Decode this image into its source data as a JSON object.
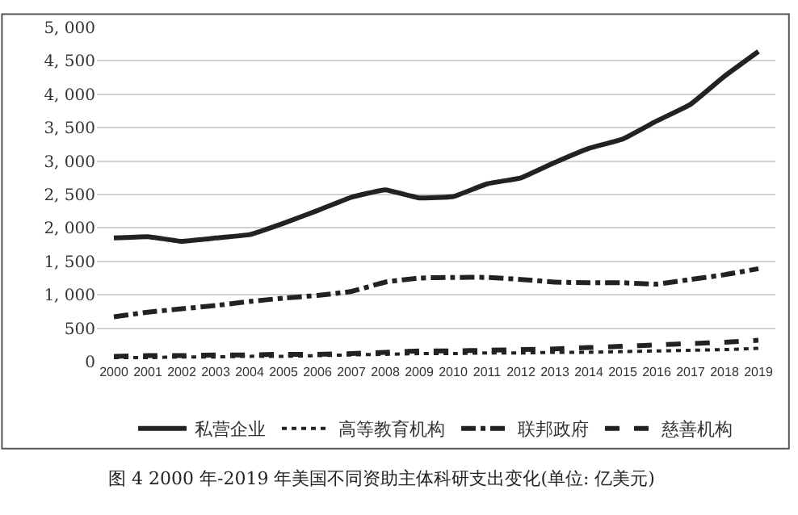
{
  "chart_data": {
    "type": "line",
    "categories": [
      "2000",
      "2001",
      "2002",
      "2003",
      "2004",
      "2005",
      "2006",
      "2007",
      "2008",
      "2009",
      "2010",
      "2011",
      "2012",
      "2013",
      "2014",
      "2015",
      "2016",
      "2017",
      "2018",
      "2019"
    ],
    "series": [
      {
        "name": "私营企业",
        "color": "#222222",
        "line_style": "solid",
        "values": [
          1850,
          1870,
          1800,
          1850,
          1900,
          2070,
          2260,
          2460,
          2570,
          2450,
          2470,
          2660,
          2750,
          2980,
          3190,
          3330,
          3600,
          3850,
          4270,
          4640
        ]
      },
      {
        "name": "高等教育机构",
        "color": "#222222",
        "line_style": "dotted",
        "values": [
          60,
          60,
          70,
          70,
          80,
          80,
          90,
          100,
          110,
          120,
          120,
          130,
          130,
          140,
          140,
          150,
          160,
          170,
          180,
          200
        ]
      },
      {
        "name": "联邦政府",
        "color": "#222222",
        "line_style": "dashdot",
        "values": [
          670,
          740,
          790,
          840,
          900,
          950,
          990,
          1050,
          1190,
          1250,
          1260,
          1260,
          1230,
          1190,
          1180,
          1180,
          1160,
          1230,
          1300,
          1390
        ]
      },
      {
        "name": "慈善机构",
        "color": "#222222",
        "line_style": "dashed",
        "values": [
          80,
          90,
          90,
          100,
          100,
          110,
          110,
          120,
          140,
          160,
          160,
          170,
          180,
          190,
          210,
          230,
          250,
          270,
          290,
          320
        ]
      }
    ],
    "ylim": [
      0,
      5000
    ],
    "yticks": [
      0,
      500,
      {
        "value": 1000,
        "label": "1, 000"
      },
      {
        "value": 1500,
        "label": "1, 500"
      },
      {
        "value": 2000,
        "label": "2, 000"
      },
      {
        "value": 2500,
        "label": "2, 500"
      },
      {
        "value": 3000,
        "label": "3, 000"
      },
      {
        "value": 3500,
        "label": "3, 500"
      },
      {
        "value": 4000,
        "label": "4, 000"
      },
      {
        "value": 4500,
        "label": "4, 500"
      },
      {
        "value": 5000,
        "label": "5, 000"
      }
    ],
    "grid": "y",
    "legend": "bottom",
    "marker": "none",
    "annotations": [
      "图 4 2000 年-2019 年美国不同资助主体科研支出变化(单位: 亿美元)"
    ]
  }
}
